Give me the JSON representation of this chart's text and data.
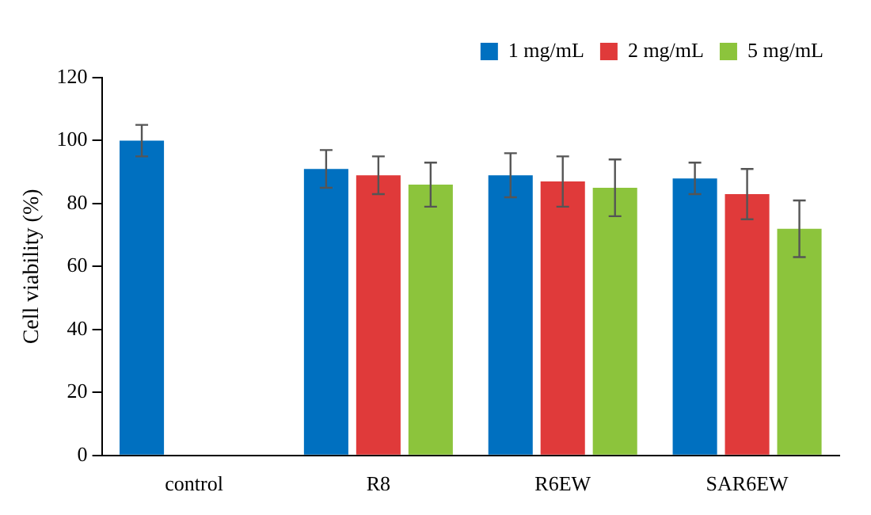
{
  "chart_data": {
    "type": "bar",
    "ylabel": "Cell viability (%)",
    "categories": [
      "control",
      "R8",
      "R6EW",
      "SAR6EW"
    ],
    "series": [
      {
        "name": "1 mg/mL",
        "color": "#0070c0",
        "values": [
          100,
          91,
          89,
          88
        ],
        "errors": [
          5,
          6,
          7,
          5
        ]
      },
      {
        "name": "2 mg/mL",
        "color": "#e03a3a",
        "values": [
          null,
          89,
          87,
          83
        ],
        "errors": [
          null,
          6,
          8,
          8
        ]
      },
      {
        "name": "5 mg/mL",
        "color": "#8cc43c",
        "values": [
          null,
          86,
          85,
          72
        ],
        "errors": [
          null,
          7,
          9,
          9
        ]
      }
    ],
    "ylim": [
      0,
      120
    ],
    "yticks": [
      0,
      20,
      40,
      60,
      80,
      100,
      120
    ],
    "grid": false,
    "legend": "top right"
  }
}
